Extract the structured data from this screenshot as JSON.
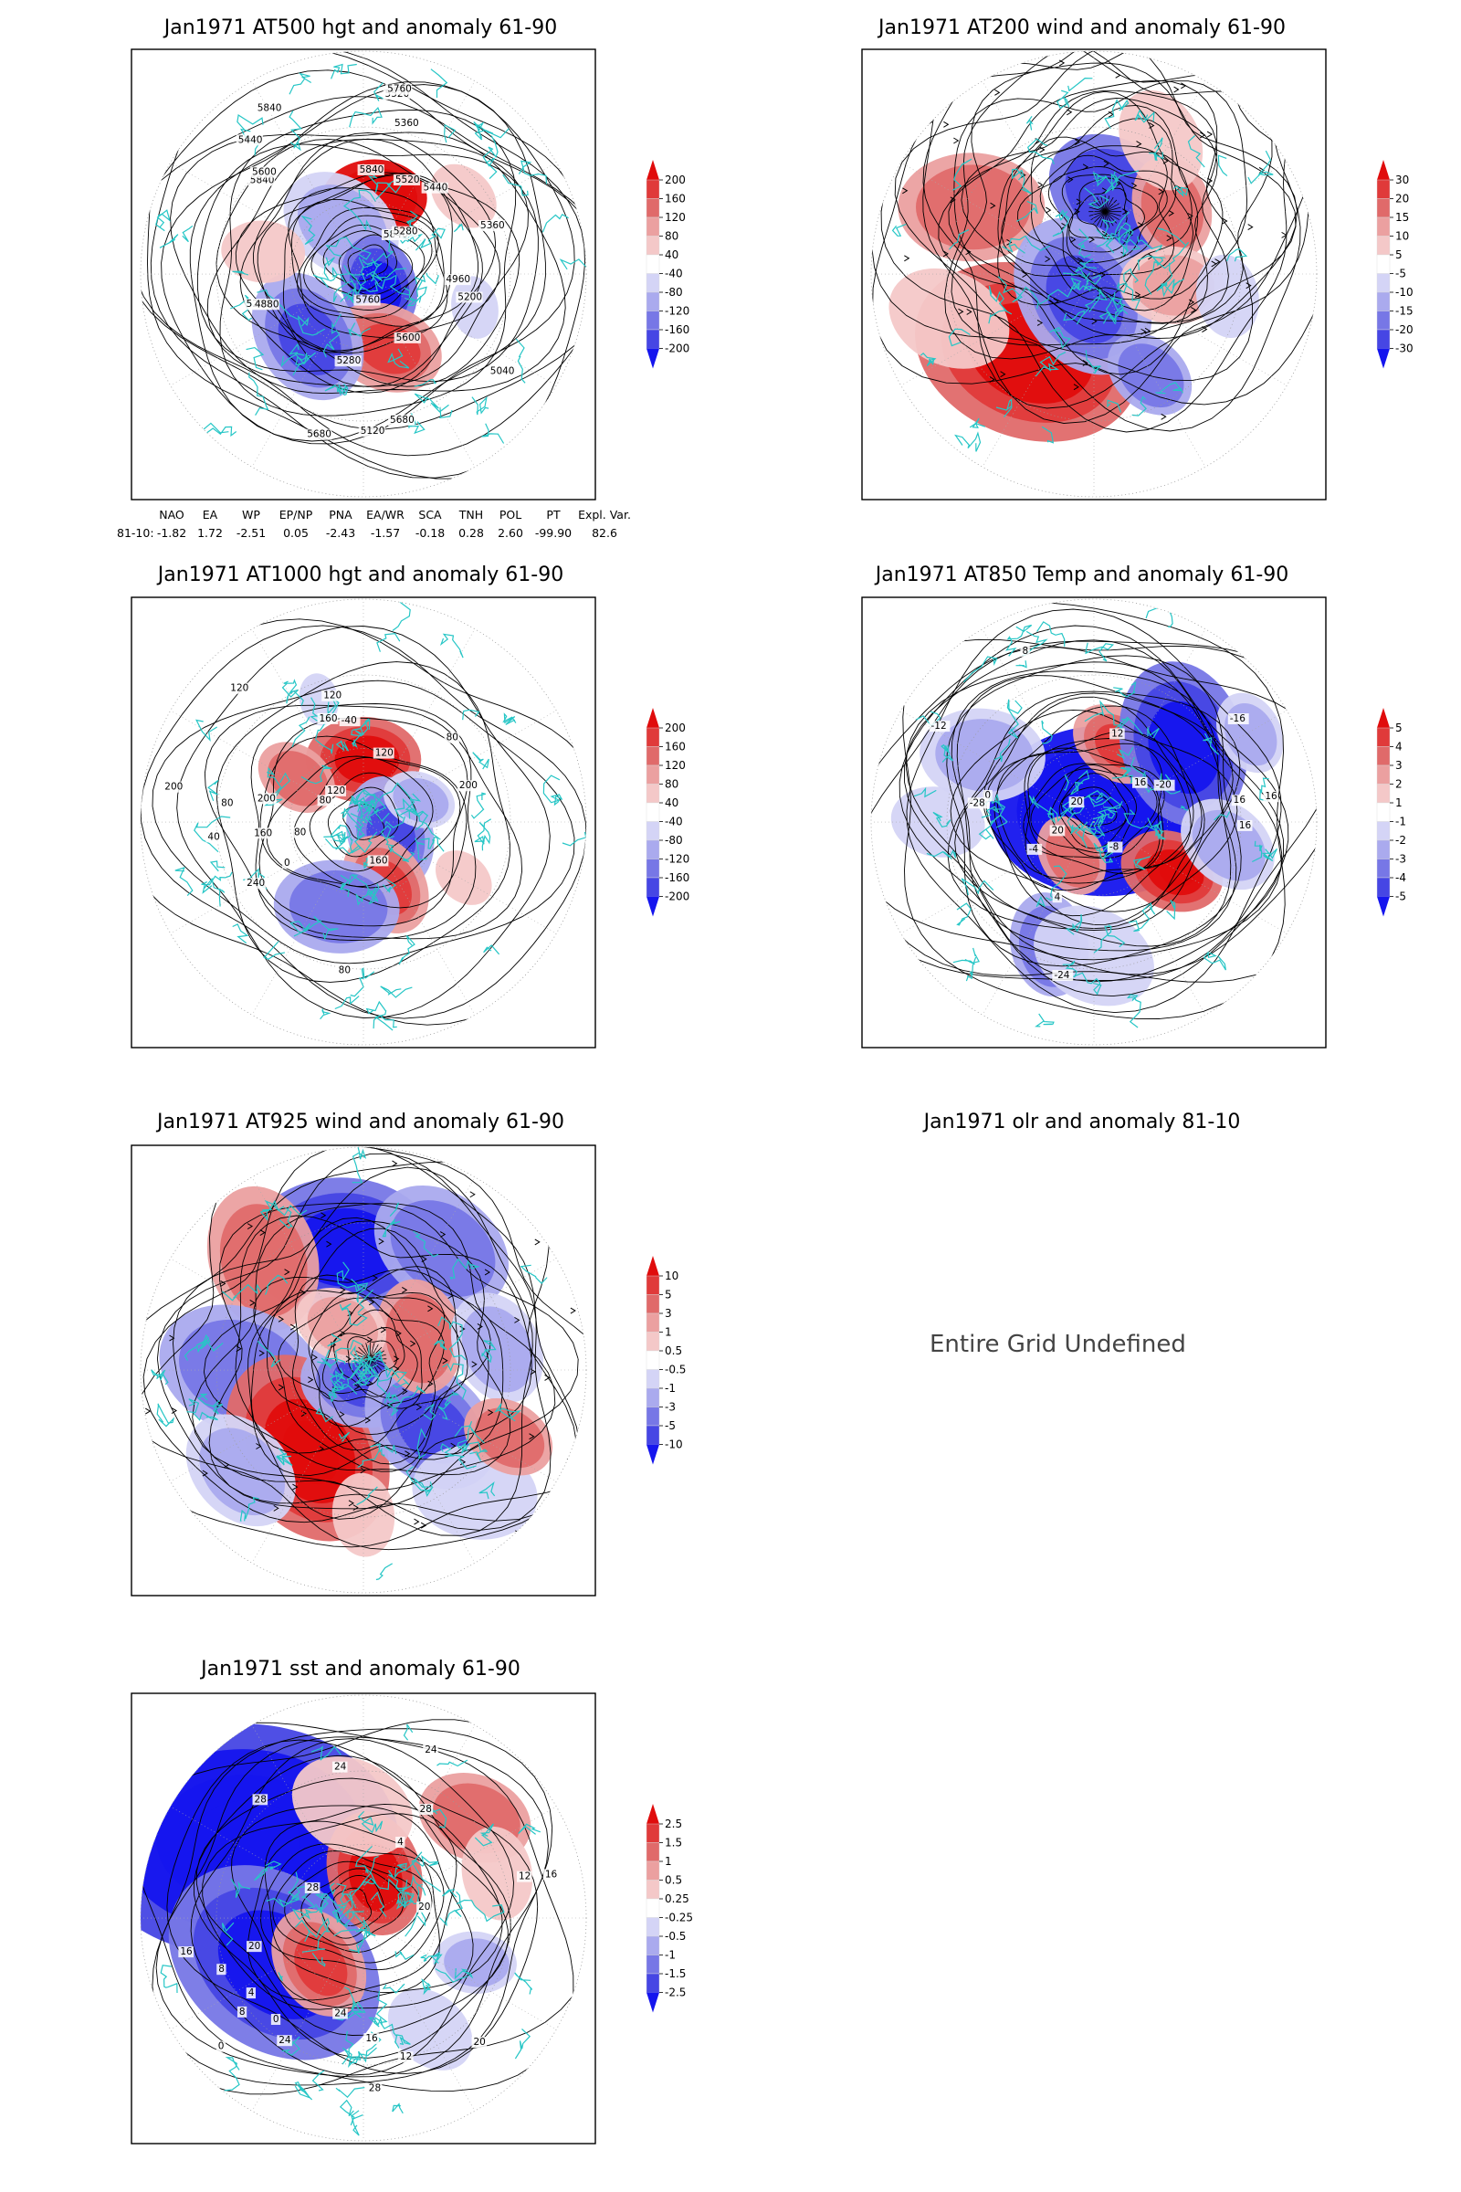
{
  "panels": [
    {
      "id": "at500",
      "title": "Jan1971 AT500 hgt and anomaly 61-90",
      "contour_labels": [
        "5840",
        "5760",
        "5680",
        "5600",
        "5520",
        "5440",
        "5360",
        "5280",
        "5200",
        "5120",
        "5040",
        "4960",
        "4880",
        "5840",
        "5840",
        "5840",
        "5200",
        "5280",
        "5360",
        "5440",
        "5520",
        "5600",
        "5680",
        "5760"
      ],
      "colorbar": [
        "200",
        "160",
        "120",
        "80",
        "40",
        "-40",
        "-80",
        "-120",
        "-160",
        "-200"
      ]
    },
    {
      "id": "at200",
      "title": "Jan1971 AT200 wind and anomaly 61-90",
      "contour_labels": [],
      "colorbar": [
        "30",
        "20",
        "15",
        "10",
        "5",
        "-5",
        "-10",
        "-15",
        "-20",
        "-30"
      ]
    },
    {
      "id": "at1000",
      "title": "Jan1971 AT1000 hgt and anomaly 61-90",
      "contour_labels": [
        "80",
        "120",
        "200",
        "80",
        "200",
        "160",
        "120",
        "40",
        "0",
        "-40",
        "80",
        "160",
        "240",
        "200",
        "120",
        "160",
        "120",
        "80",
        "80"
      ],
      "colorbar": [
        "200",
        "160",
        "120",
        "80",
        "40",
        "-40",
        "-80",
        "-120",
        "-160",
        "-200"
      ]
    },
    {
      "id": "at850",
      "title": "Jan1971 AT850 Temp and anomaly 61-90",
      "contour_labels": [
        "16",
        "12",
        "8",
        "4",
        "0",
        "-4",
        "-8",
        "-12",
        "-16",
        "-20",
        "-24",
        "-28",
        "16",
        "16",
        "20",
        "20",
        "16"
      ],
      "colorbar": [
        "5",
        "4",
        "3",
        "2",
        "1",
        "-1",
        "-2",
        "-3",
        "-4",
        "-5"
      ]
    },
    {
      "id": "at925",
      "title": "Jan1971 AT925 wind and anomaly 61-90",
      "contour_labels": [],
      "colorbar": [
        "10",
        "5",
        "3",
        "1",
        "0.5",
        "-0.5",
        "-1",
        "-3",
        "-5",
        "-10"
      ]
    },
    {
      "id": "olr",
      "title": "Jan1971 olr and anomaly 81-10",
      "message": "Entire Grid Undefined"
    },
    {
      "id": "sst",
      "title": "Jan1971 sst and anomaly 61-90",
      "contour_labels": [
        "24",
        "24",
        "20",
        "20",
        "16",
        "12",
        "8",
        "4",
        "0",
        "28",
        "16",
        "12",
        "8",
        "4",
        "0",
        "20",
        "16",
        "24",
        "28",
        "28",
        "24",
        "28"
      ],
      "colorbar": [
        "2.5",
        "1.5",
        "1",
        "0.5",
        "0.25",
        "-0.25",
        "-0.5",
        "-1",
        "-1.5",
        "-2.5"
      ]
    }
  ],
  "indices": {
    "row_label": "81-10:",
    "headers": [
      "NAO",
      "EA",
      "WP",
      "EP/NP",
      "PNA",
      "EA/WR",
      "SCA",
      "TNH",
      "POL",
      "PT",
      "Expl. Var."
    ],
    "values": [
      "-1.82",
      "1.72",
      "-2.51",
      "0.05",
      "-2.43",
      "-1.57",
      "-0.18",
      "0.28",
      "2.60",
      "-99.90",
      "82.6"
    ]
  },
  "colors": {
    "coast": "#26c6c6",
    "contour": "#000000",
    "red_scale": [
      "#f4c8c8",
      "#eba0a0",
      "#e06a6a",
      "#e03a3a",
      "#e00c0c"
    ],
    "blue_scale": [
      "#d4d4f6",
      "#aaaaee",
      "#7777e6",
      "#4646e4",
      "#1515ee"
    ]
  }
}
